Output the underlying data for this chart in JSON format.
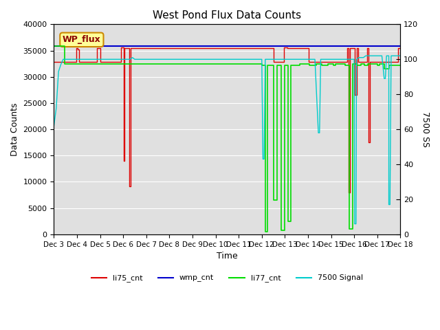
{
  "title": "West Pond Flux Data Counts",
  "xlabel": "Time",
  "ylabel_left": "Data Counts",
  "ylabel_right": "7500 SS",
  "xlim": [
    0,
    15
  ],
  "ylim_left": [
    0,
    40000
  ],
  "ylim_right": [
    0,
    120
  ],
  "background_color": "#e0e0e0",
  "legend_label": "WP_flux",
  "li75_color": "#dd0000",
  "wmp_color": "#0000cc",
  "li77_color": "#00dd00",
  "sig_color": "#00cccc",
  "li75_data": [
    [
      0.0,
      32800
    ],
    [
      0.98,
      32800
    ],
    [
      0.98,
      35500
    ],
    [
      1.0,
      35500
    ],
    [
      1.0,
      35500
    ],
    [
      1.02,
      35500
    ],
    [
      1.02,
      35200
    ],
    [
      1.08,
      35200
    ],
    [
      1.08,
      32800
    ],
    [
      1.85,
      32800
    ],
    [
      1.85,
      35500
    ],
    [
      2.0,
      35500
    ],
    [
      2.0,
      35500
    ],
    [
      2.02,
      35500
    ],
    [
      2.02,
      32800
    ],
    [
      2.9,
      32800
    ],
    [
      2.9,
      35600
    ],
    [
      3.0,
      35600
    ],
    [
      3.0,
      35600
    ],
    [
      3.01,
      35600
    ],
    [
      3.01,
      14000
    ],
    [
      3.04,
      14000
    ],
    [
      3.04,
      35500
    ],
    [
      3.25,
      35500
    ],
    [
      3.25,
      35500
    ],
    [
      3.27,
      35500
    ],
    [
      3.27,
      9200
    ],
    [
      3.32,
      9200
    ],
    [
      3.32,
      35500
    ],
    [
      9.5,
      35500
    ],
    [
      9.5,
      32800
    ],
    [
      9.95,
      32800
    ],
    [
      9.95,
      35600
    ],
    [
      10.0,
      35600
    ],
    [
      10.0,
      35600
    ],
    [
      10.02,
      35600
    ],
    [
      10.02,
      35600
    ],
    [
      10.1,
      35600
    ],
    [
      10.1,
      35500
    ],
    [
      10.95,
      35500
    ],
    [
      10.95,
      35500
    ],
    [
      11.0,
      35500
    ],
    [
      11.0,
      35500
    ],
    [
      11.02,
      35500
    ],
    [
      11.02,
      32800
    ],
    [
      12.7,
      32800
    ],
    [
      12.7,
      35500
    ],
    [
      12.72,
      35500
    ],
    [
      12.72,
      35500
    ],
    [
      12.75,
      35500
    ],
    [
      12.75,
      8000
    ],
    [
      12.82,
      8000
    ],
    [
      12.82,
      35500
    ],
    [
      13.0,
      35500
    ],
    [
      13.0,
      35500
    ],
    [
      13.02,
      35500
    ],
    [
      13.02,
      26500
    ],
    [
      13.1,
      26500
    ],
    [
      13.1,
      35500
    ],
    [
      13.15,
      35500
    ],
    [
      13.15,
      35500
    ],
    [
      13.18,
      35500
    ],
    [
      13.18,
      32800
    ],
    [
      13.55,
      32800
    ],
    [
      13.55,
      35500
    ],
    [
      13.6,
      35500
    ],
    [
      13.6,
      35500
    ],
    [
      13.62,
      35500
    ],
    [
      13.62,
      17500
    ],
    [
      13.68,
      17500
    ],
    [
      13.68,
      32800
    ],
    [
      14.9,
      32800
    ],
    [
      14.9,
      35500
    ],
    [
      15.0,
      35500
    ]
  ],
  "wmp_value": 35900,
  "li77_data": [
    [
      0.0,
      35800
    ],
    [
      0.45,
      35800
    ],
    [
      0.45,
      32500
    ],
    [
      9.0,
      32500
    ],
    [
      9.0,
      32500
    ],
    [
      9.02,
      32500
    ],
    [
      9.02,
      32200
    ],
    [
      9.15,
      32200
    ],
    [
      9.15,
      500
    ],
    [
      9.25,
      500
    ],
    [
      9.25,
      32200
    ],
    [
      9.5,
      32200
    ],
    [
      9.5,
      6500
    ],
    [
      9.65,
      6500
    ],
    [
      9.65,
      32200
    ],
    [
      9.85,
      32200
    ],
    [
      9.85,
      800
    ],
    [
      10.0,
      800
    ],
    [
      10.0,
      32200
    ],
    [
      10.15,
      32200
    ],
    [
      10.15,
      2500
    ],
    [
      10.25,
      2500
    ],
    [
      10.25,
      32200
    ],
    [
      10.5,
      32200
    ],
    [
      10.5,
      32200
    ],
    [
      10.65,
      32200
    ],
    [
      10.65,
      32500
    ],
    [
      11.0,
      32500
    ],
    [
      11.0,
      32500
    ],
    [
      11.05,
      32500
    ],
    [
      11.05,
      32200
    ],
    [
      11.35,
      32200
    ],
    [
      11.35,
      32500
    ],
    [
      11.5,
      32500
    ],
    [
      11.5,
      32500
    ],
    [
      11.6,
      32500
    ],
    [
      11.6,
      32200
    ],
    [
      11.85,
      32200
    ],
    [
      11.85,
      32500
    ],
    [
      12.1,
      32500
    ],
    [
      12.1,
      32200
    ],
    [
      12.2,
      32200
    ],
    [
      12.2,
      32500
    ],
    [
      12.6,
      32500
    ],
    [
      12.6,
      32200
    ],
    [
      12.8,
      32200
    ],
    [
      12.8,
      1000
    ],
    [
      12.95,
      1000
    ],
    [
      12.95,
      32500
    ],
    [
      13.1,
      32500
    ],
    [
      13.1,
      32200
    ],
    [
      13.3,
      32200
    ],
    [
      13.3,
      32500
    ],
    [
      13.45,
      32500
    ],
    [
      13.45,
      32200
    ],
    [
      13.6,
      32200
    ],
    [
      13.6,
      32500
    ],
    [
      14.0,
      32500
    ],
    [
      14.0,
      32200
    ],
    [
      14.1,
      32200
    ],
    [
      14.1,
      32500
    ],
    [
      14.3,
      32500
    ],
    [
      14.3,
      31500
    ],
    [
      14.5,
      31500
    ],
    [
      14.5,
      32200
    ],
    [
      15.0,
      32200
    ]
  ],
  "sig7500_data": [
    [
      0.0,
      62
    ],
    [
      0.05,
      67
    ],
    [
      0.1,
      72
    ],
    [
      0.2,
      93
    ],
    [
      0.3,
      97
    ],
    [
      0.4,
      100
    ],
    [
      0.5,
      100
    ],
    [
      0.6,
      100
    ],
    [
      0.8,
      100
    ],
    [
      1.0,
      100
    ],
    [
      1.5,
      100
    ],
    [
      2.0,
      100
    ],
    [
      2.5,
      100
    ],
    [
      3.0,
      100
    ],
    [
      3.1,
      100
    ],
    [
      3.2,
      100
    ],
    [
      3.3,
      100
    ],
    [
      3.4,
      101
    ],
    [
      3.5,
      100
    ],
    [
      4.0,
      100
    ],
    [
      5.0,
      100
    ],
    [
      6.0,
      100
    ],
    [
      7.0,
      100
    ],
    [
      8.0,
      100
    ],
    [
      8.5,
      100
    ],
    [
      8.8,
      100
    ],
    [
      8.9,
      100
    ],
    [
      9.0,
      100
    ],
    [
      9.0,
      100
    ],
    [
      9.05,
      43
    ],
    [
      9.1,
      43
    ],
    [
      9.15,
      100
    ],
    [
      9.2,
      100
    ],
    [
      9.5,
      100
    ],
    [
      9.8,
      100
    ],
    [
      10.0,
      100
    ],
    [
      10.5,
      100
    ],
    [
      11.0,
      100
    ],
    [
      11.2,
      100
    ],
    [
      11.3,
      100
    ],
    [
      11.45,
      58
    ],
    [
      11.5,
      58
    ],
    [
      11.55,
      100
    ],
    [
      11.6,
      100
    ],
    [
      11.8,
      100
    ],
    [
      12.0,
      100
    ],
    [
      12.0,
      100
    ],
    [
      12.5,
      100
    ],
    [
      12.7,
      100
    ],
    [
      12.7,
      100
    ],
    [
      12.72,
      100
    ],
    [
      12.75,
      100
    ],
    [
      12.8,
      100
    ],
    [
      12.9,
      100
    ],
    [
      13.0,
      100
    ],
    [
      13.0,
      100
    ],
    [
      13.02,
      6
    ],
    [
      13.08,
      6
    ],
    [
      13.1,
      100
    ],
    [
      13.2,
      101
    ],
    [
      13.3,
      101
    ],
    [
      13.4,
      101
    ],
    [
      13.5,
      102
    ],
    [
      13.6,
      102
    ],
    [
      13.7,
      102
    ],
    [
      13.8,
      102
    ],
    [
      13.9,
      102
    ],
    [
      14.0,
      102
    ],
    [
      14.1,
      102
    ],
    [
      14.2,
      102
    ],
    [
      14.3,
      89
    ],
    [
      14.35,
      89
    ],
    [
      14.4,
      102
    ],
    [
      14.5,
      102
    ],
    [
      14.5,
      17
    ],
    [
      14.55,
      17
    ],
    [
      14.6,
      102
    ],
    [
      14.7,
      102
    ],
    [
      14.8,
      102
    ],
    [
      14.9,
      102
    ],
    [
      15.0,
      102
    ]
  ],
  "xtick_labels": [
    "Dec 3",
    "Dec 4",
    "Dec 5",
    "Dec 6",
    "Dec 7",
    "Dec 8",
    "Dec 9",
    "Dec 10",
    "Dec 11",
    "Dec 12",
    "Dec 13",
    "Dec 14",
    "Dec 15",
    "Dec 16",
    "Dec 17",
    "Dec 18"
  ],
  "xtick_positions": [
    0,
    1,
    2,
    3,
    4,
    5,
    6,
    7,
    8,
    9,
    10,
    11,
    12,
    13,
    14,
    15
  ],
  "ytick_left": [
    0,
    5000,
    10000,
    15000,
    20000,
    25000,
    30000,
    35000,
    40000
  ],
  "ytick_right": [
    0,
    20,
    40,
    60,
    80,
    100,
    120
  ],
  "wp_flux_box_color": "#ffff99",
  "wp_flux_border_color": "#cc8800"
}
